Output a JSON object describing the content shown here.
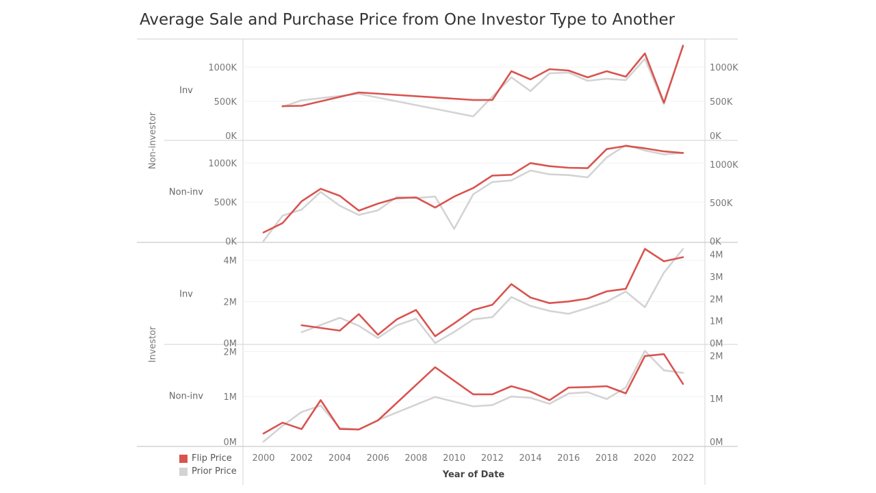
{
  "title": "Average Sale and Purchase Price from One Investor Type to Another",
  "chart_data": {
    "type": "line",
    "title": "Average Sale and Purchase Price from One Investor Type to Another",
    "xlabel": "Year of Date",
    "x_ticks": [
      "2000",
      "2002",
      "2004",
      "2006",
      "2008",
      "2010",
      "2012",
      "2014",
      "2016",
      "2018",
      "2020",
      "2022"
    ],
    "xlim": [
      2000,
      2022
    ],
    "legend": {
      "placement": "bottom-left",
      "items": [
        {
          "name": "Flip Price",
          "color": "#d9534f"
        },
        {
          "name": "Prior Price",
          "color": "#d3d3d3"
        }
      ]
    },
    "groups": [
      {
        "label": "Non-investor",
        "rows": [
          0,
          1
        ]
      },
      {
        "label": "Investor",
        "rows": [
          2,
          3
        ]
      }
    ],
    "panels": [
      {
        "row_label": "Inv",
        "left_axis": {
          "range": [
            0,
            1300000
          ],
          "ticks": [
            {
              "v": 0,
              "label": "0K"
            },
            {
              "v": 500000,
              "label": "500K"
            },
            {
              "v": 1000000,
              "label": "1000K"
            }
          ]
        },
        "right_axis": {
          "range": [
            0,
            1300000
          ],
          "ticks": [
            {
              "v": 0,
              "label": "0K"
            },
            {
              "v": 500000,
              "label": "500K"
            },
            {
              "v": 1000000,
              "label": "1000K"
            }
          ]
        },
        "series": [
          {
            "name": "Flip Price",
            "axis": "left",
            "points": [
              [
                2001,
                430000
              ],
              [
                2002,
                435000
              ],
              [
                2005,
                630000
              ],
              [
                2011,
                520000
              ],
              [
                2012,
                520000
              ],
              [
                2013,
                940000
              ],
              [
                2014,
                820000
              ],
              [
                2015,
                970000
              ],
              [
                2016,
                950000
              ],
              [
                2017,
                850000
              ],
              [
                2018,
                940000
              ],
              [
                2019,
                860000
              ],
              [
                2020,
                1200000
              ],
              [
                2021,
                480000
              ],
              [
                2022,
                1310000
              ]
            ]
          },
          {
            "name": "Prior Price",
            "axis": "right",
            "points": [
              [
                2001,
                420000
              ],
              [
                2002,
                515000
              ],
              [
                2005,
                610000
              ],
              [
                2011,
                280000
              ],
              [
                2012,
                570000
              ],
              [
                2013,
                850000
              ],
              [
                2014,
                650000
              ],
              [
                2015,
                910000
              ],
              [
                2016,
                920000
              ],
              [
                2017,
                800000
              ],
              [
                2018,
                830000
              ],
              [
                2019,
                810000
              ],
              [
                2020,
                1120000
              ],
              [
                2021,
                460000
              ],
              [
                2022,
                1320000
              ]
            ]
          }
        ]
      },
      {
        "row_label": "Non-inv",
        "left_axis": {
          "range": [
            0,
            1230000
          ],
          "ticks": [
            {
              "v": 0,
              "label": "0K"
            },
            {
              "v": 500000,
              "label": "500K"
            },
            {
              "v": 1000000,
              "label": "1000K"
            }
          ]
        },
        "right_axis": {
          "range": [
            0,
            1250000
          ],
          "ticks": [
            {
              "v": 0,
              "label": "0K"
            },
            {
              "v": 500000,
              "label": "500K"
            },
            {
              "v": 1000000,
              "label": "1000K"
            }
          ]
        },
        "series": [
          {
            "name": "Flip Price",
            "axis": "left",
            "points": [
              [
                2000,
                110000
              ],
              [
                2001,
                230000
              ],
              [
                2002,
                510000
              ],
              [
                2003,
                670000
              ],
              [
                2004,
                580000
              ],
              [
                2005,
                390000
              ],
              [
                2006,
                480000
              ],
              [
                2007,
                550000
              ],
              [
                2008,
                560000
              ],
              [
                2009,
                430000
              ],
              [
                2010,
                570000
              ],
              [
                2011,
                680000
              ],
              [
                2012,
                840000
              ],
              [
                2013,
                850000
              ],
              [
                2014,
                1000000
              ],
              [
                2015,
                960000
              ],
              [
                2016,
                940000
              ],
              [
                2017,
                935000
              ],
              [
                2018,
                1180000
              ],
              [
                2019,
                1220000
              ],
              [
                2020,
                1190000
              ],
              [
                2021,
                1150000
              ],
              [
                2022,
                1130000
              ]
            ]
          },
          {
            "name": "Prior Price",
            "axis": "right",
            "points": [
              [
                2000,
                0
              ],
              [
                2001,
                330000
              ],
              [
                2002,
                410000
              ],
              [
                2003,
                640000
              ],
              [
                2004,
                460000
              ],
              [
                2005,
                340000
              ],
              [
                2006,
                400000
              ],
              [
                2007,
                575000
              ],
              [
                2008,
                560000
              ],
              [
                2009,
                580000
              ],
              [
                2010,
                160000
              ],
              [
                2011,
                610000
              ],
              [
                2012,
                770000
              ],
              [
                2013,
                790000
              ],
              [
                2014,
                920000
              ],
              [
                2015,
                870000
              ],
              [
                2016,
                860000
              ],
              [
                2017,
                830000
              ],
              [
                2018,
                1090000
              ],
              [
                2019,
                1250000
              ],
              [
                2020,
                1180000
              ],
              [
                2021,
                1130000
              ],
              [
                2022,
                1150000
              ]
            ]
          }
        ]
      },
      {
        "row_label": "Inv",
        "left_axis": {
          "range": [
            0,
            4600000
          ],
          "ticks": [
            {
              "v": 0,
              "label": "0M"
            },
            {
              "v": 2000000,
              "label": "2M"
            },
            {
              "v": 4000000,
              "label": "4M"
            }
          ]
        },
        "right_axis": {
          "range": [
            0,
            4300000
          ],
          "ticks": [
            {
              "v": 0,
              "label": "0M"
            },
            {
              "v": 1000000,
              "label": "1M"
            },
            {
              "v": 2000000,
              "label": "2M"
            },
            {
              "v": 3000000,
              "label": "3M"
            },
            {
              "v": 4000000,
              "label": "4M"
            }
          ]
        },
        "series": [
          {
            "name": "Flip Price",
            "axis": "left",
            "points": [
              [
                2002,
                860000
              ],
              [
                2004,
                600000
              ],
              [
                2005,
                1400000
              ],
              [
                2006,
                400000
              ],
              [
                2007,
                1150000
              ],
              [
                2008,
                1600000
              ],
              [
                2009,
                330000
              ],
              [
                2010,
                950000
              ],
              [
                2011,
                1600000
              ],
              [
                2012,
                1850000
              ],
              [
                2013,
                2850000
              ],
              [
                2014,
                2200000
              ],
              [
                2015,
                1930000
              ],
              [
                2016,
                2010000
              ],
              [
                2017,
                2150000
              ],
              [
                2018,
                2500000
              ],
              [
                2019,
                2620000
              ],
              [
                2020,
                4550000
              ],
              [
                2021,
                3950000
              ],
              [
                2022,
                4150000
              ]
            ]
          },
          {
            "name": "Prior Price",
            "axis": "right",
            "points": [
              [
                2002,
                490000
              ],
              [
                2004,
                1140000
              ],
              [
                2005,
                780000
              ],
              [
                2006,
                230000
              ],
              [
                2007,
                800000
              ],
              [
                2008,
                1100000
              ],
              [
                2009,
                0
              ],
              [
                2010,
                500000
              ],
              [
                2011,
                1070000
              ],
              [
                2012,
                1170000
              ],
              [
                2013,
                2080000
              ],
              [
                2014,
                1680000
              ],
              [
                2015,
                1450000
              ],
              [
                2016,
                1320000
              ],
              [
                2017,
                1580000
              ],
              [
                2018,
                1870000
              ],
              [
                2019,
                2330000
              ],
              [
                2020,
                1620000
              ],
              [
                2021,
                3180000
              ],
              [
                2022,
                4250000
              ]
            ]
          }
        ]
      },
      {
        "row_label": "Non-inv",
        "left_axis": {
          "range": [
            0,
            2050000
          ],
          "ticks": [
            {
              "v": 0,
              "label": "0M"
            },
            {
              "v": 1000000,
              "label": "1M"
            },
            {
              "v": 2000000,
              "label": "2M"
            }
          ]
        },
        "right_axis": {
          "range": [
            0,
            2150000
          ],
          "ticks": [
            {
              "v": 0,
              "label": "0M"
            },
            {
              "v": 1000000,
              "label": "1M"
            },
            {
              "v": 2000000,
              "label": "2M"
            }
          ]
        },
        "series": [
          {
            "name": "Flip Price",
            "axis": "left",
            "points": [
              [
                2000,
                180000
              ],
              [
                2001,
                420000
              ],
              [
                2002,
                280000
              ],
              [
                2003,
                920000
              ],
              [
                2004,
                280000
              ],
              [
                2005,
                270000
              ],
              [
                2006,
                470000
              ],
              [
                2009,
                1650000
              ],
              [
                2011,
                1050000
              ],
              [
                2012,
                1050000
              ],
              [
                2013,
                1230000
              ],
              [
                2014,
                1110000
              ],
              [
                2015,
                920000
              ],
              [
                2016,
                1200000
              ],
              [
                2017,
                1210000
              ],
              [
                2018,
                1230000
              ],
              [
                2019,
                1070000
              ],
              [
                2020,
                1900000
              ],
              [
                2021,
                1940000
              ],
              [
                2022,
                1280000
              ]
            ]
          },
          {
            "name": "Prior Price",
            "axis": "right",
            "points": [
              [
                2000,
                0
              ],
              [
                2001,
                370000
              ],
              [
                2002,
                690000
              ],
              [
                2003,
                840000
              ],
              [
                2004,
                320000
              ],
              [
                2005,
                280000
              ],
              [
                2006,
                500000
              ],
              [
                2009,
                1040000
              ],
              [
                2011,
                820000
              ],
              [
                2012,
                850000
              ],
              [
                2013,
                1050000
              ],
              [
                2014,
                1020000
              ],
              [
                2015,
                880000
              ],
              [
                2016,
                1120000
              ],
              [
                2017,
                1150000
              ],
              [
                2018,
                990000
              ],
              [
                2019,
                1260000
              ],
              [
                2020,
                2110000
              ],
              [
                2021,
                1660000
              ],
              [
                2022,
                1600000
              ]
            ]
          }
        ]
      }
    ]
  }
}
